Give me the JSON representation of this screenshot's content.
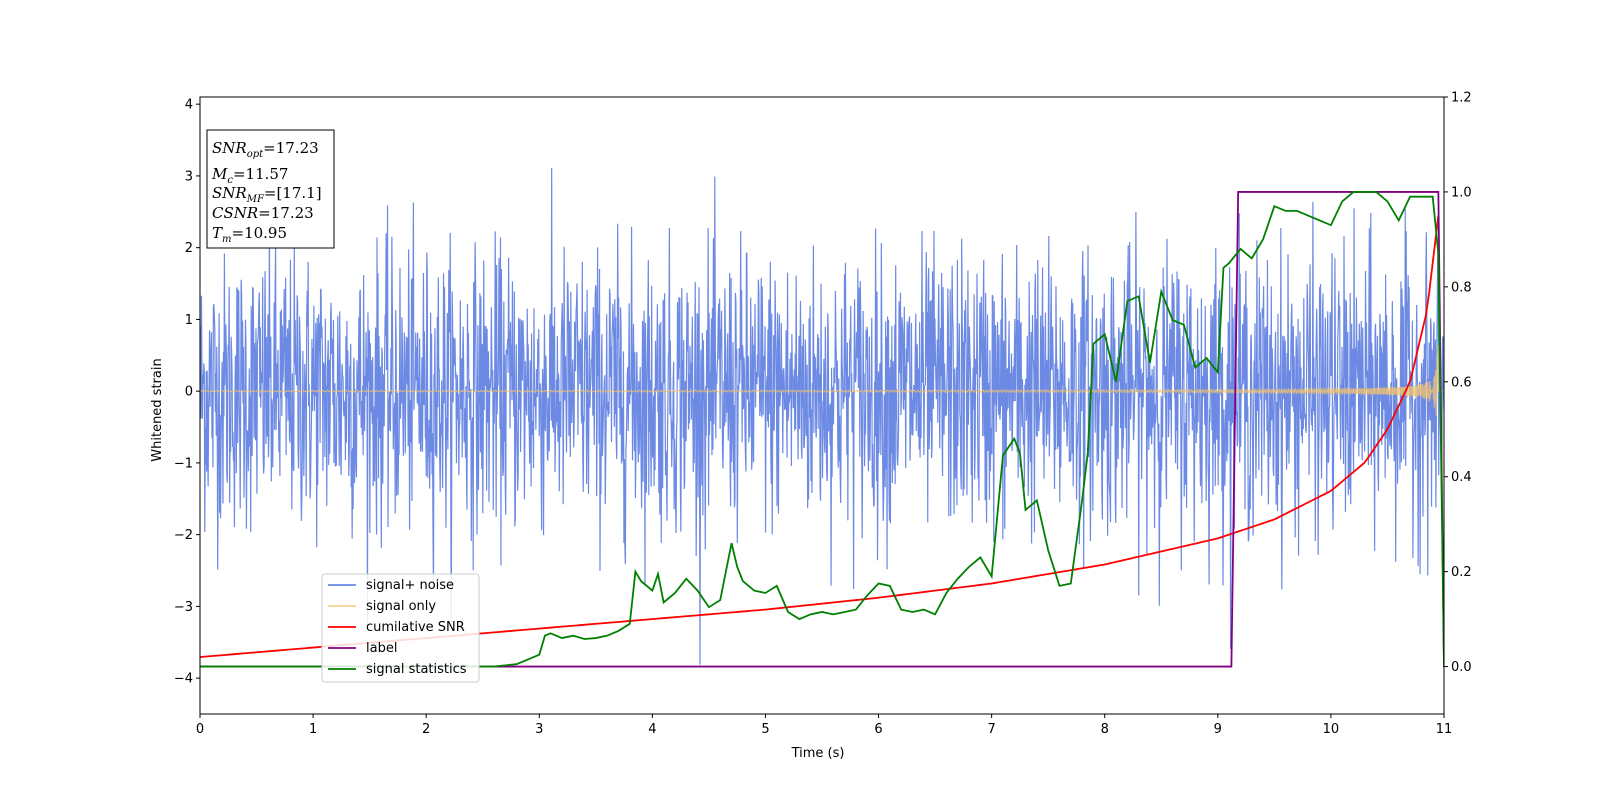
{
  "chart_data": {
    "type": "line",
    "xlabel": "Time (s)",
    "ylabel": "Whitened strain",
    "xlim": [
      0,
      11
    ],
    "ylim": [
      -4.5,
      4.1
    ],
    "y2lim": [
      -0.1,
      1.2
    ],
    "x_ticks": [
      "0",
      "1",
      "2",
      "3",
      "4",
      "5",
      "6",
      "7",
      "8",
      "9",
      "10",
      "11"
    ],
    "y_ticks": [
      "−4",
      "−3",
      "−2",
      "−1",
      "0",
      "1",
      "2",
      "3",
      "4"
    ],
    "y2_ticks": [
      "0.0",
      "0.2",
      "0.4",
      "0.6",
      "0.8",
      "1.0",
      "1.2"
    ],
    "legend_position": "lower-left",
    "info_box": {
      "snr_opt": "=17.23",
      "mc": "=11.57",
      "snr_mf": "=[17.1]",
      "csnr": "=17.23",
      "tm": "=10.95"
    },
    "series": [
      {
        "name": "signal+ noise",
        "color": "#6c8ae4",
        "axis": "left",
        "description_range": [
          -4.2,
          3.7
        ],
        "noise_sigma": 1.0
      },
      {
        "name": "signal only",
        "color": "#f5c46b",
        "axis": "left",
        "amplitude_start": 0.05,
        "amplitude_end": 1.2,
        "merger_time": 10.95
      },
      {
        "name": "cumilative SNR",
        "color": "#ff0000",
        "axis": "right",
        "x": [
          0,
          1,
          2,
          3,
          4,
          5,
          6,
          7,
          8,
          9,
          9.5,
          10,
          10.3,
          10.5,
          10.7,
          10.85,
          10.95
        ],
        "values": [
          0.02,
          0.04,
          0.06,
          0.08,
          0.1,
          0.12,
          0.145,
          0.175,
          0.215,
          0.27,
          0.31,
          0.37,
          0.43,
          0.5,
          0.6,
          0.75,
          0.95
        ]
      },
      {
        "name": "label",
        "color": "#800080",
        "axis": "right",
        "x": [
          0,
          9.12,
          9.18,
          10.95,
          11.0
        ],
        "values": [
          0.0,
          0.0,
          1.0,
          1.0,
          0.0
        ]
      },
      {
        "name": "signal statistics",
        "color": "#008000",
        "axis": "right",
        "x": [
          0,
          2.6,
          2.8,
          2.9,
          3.0,
          3.05,
          3.1,
          3.2,
          3.3,
          3.4,
          3.5,
          3.6,
          3.7,
          3.8,
          3.85,
          3.9,
          4.0,
          4.05,
          4.1,
          4.2,
          4.3,
          4.4,
          4.5,
          4.6,
          4.7,
          4.75,
          4.8,
          4.9,
          5.0,
          5.1,
          5.2,
          5.3,
          5.4,
          5.5,
          5.6,
          5.7,
          5.8,
          5.9,
          6.0,
          6.1,
          6.2,
          6.3,
          6.4,
          6.5,
          6.6,
          6.7,
          6.8,
          6.9,
          7.0,
          7.1,
          7.2,
          7.25,
          7.3,
          7.4,
          7.5,
          7.6,
          7.7,
          7.8,
          7.85,
          7.9,
          8.0,
          8.1,
          8.2,
          8.3,
          8.4,
          8.5,
          8.6,
          8.7,
          8.8,
          8.9,
          9.0,
          9.05,
          9.1,
          9.2,
          9.3,
          9.4,
          9.5,
          9.6,
          9.7,
          9.8,
          9.9,
          10.0,
          10.1,
          10.2,
          10.3,
          10.4,
          10.5,
          10.6,
          10.7,
          10.8,
          10.9,
          10.95,
          11.0
        ],
        "values": [
          0.0,
          0.0,
          0.005,
          0.015,
          0.025,
          0.065,
          0.07,
          0.06,
          0.065,
          0.058,
          0.06,
          0.065,
          0.075,
          0.09,
          0.2,
          0.18,
          0.16,
          0.195,
          0.135,
          0.155,
          0.185,
          0.16,
          0.125,
          0.14,
          0.26,
          0.21,
          0.18,
          0.16,
          0.155,
          0.17,
          0.115,
          0.1,
          0.11,
          0.115,
          0.11,
          0.115,
          0.12,
          0.15,
          0.175,
          0.17,
          0.12,
          0.115,
          0.12,
          0.11,
          0.155,
          0.185,
          0.21,
          0.23,
          0.19,
          0.445,
          0.48,
          0.45,
          0.33,
          0.35,
          0.245,
          0.17,
          0.175,
          0.35,
          0.45,
          0.68,
          0.7,
          0.6,
          0.77,
          0.78,
          0.64,
          0.79,
          0.73,
          0.72,
          0.63,
          0.65,
          0.62,
          0.84,
          0.85,
          0.88,
          0.86,
          0.9,
          0.97,
          0.96,
          0.96,
          0.95,
          0.94,
          0.93,
          0.98,
          1.0,
          1.0,
          1.0,
          0.98,
          0.94,
          0.99,
          0.99,
          0.99,
          0.87,
          0.0
        ]
      }
    ]
  }
}
